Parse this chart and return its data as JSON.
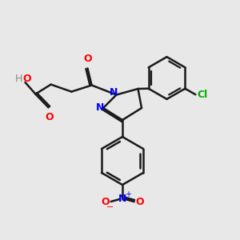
{
  "background_color": "#e8e8e8",
  "bond_color": "#1a1a1a",
  "bond_width": 1.8,
  "colors": {
    "O": "#ff0000",
    "N": "#0000ff",
    "Cl": "#00aa00",
    "H": "#888888",
    "C": "#1a1a1a"
  },
  "figsize": [
    3.0,
    3.0
  ],
  "dpi": 100
}
